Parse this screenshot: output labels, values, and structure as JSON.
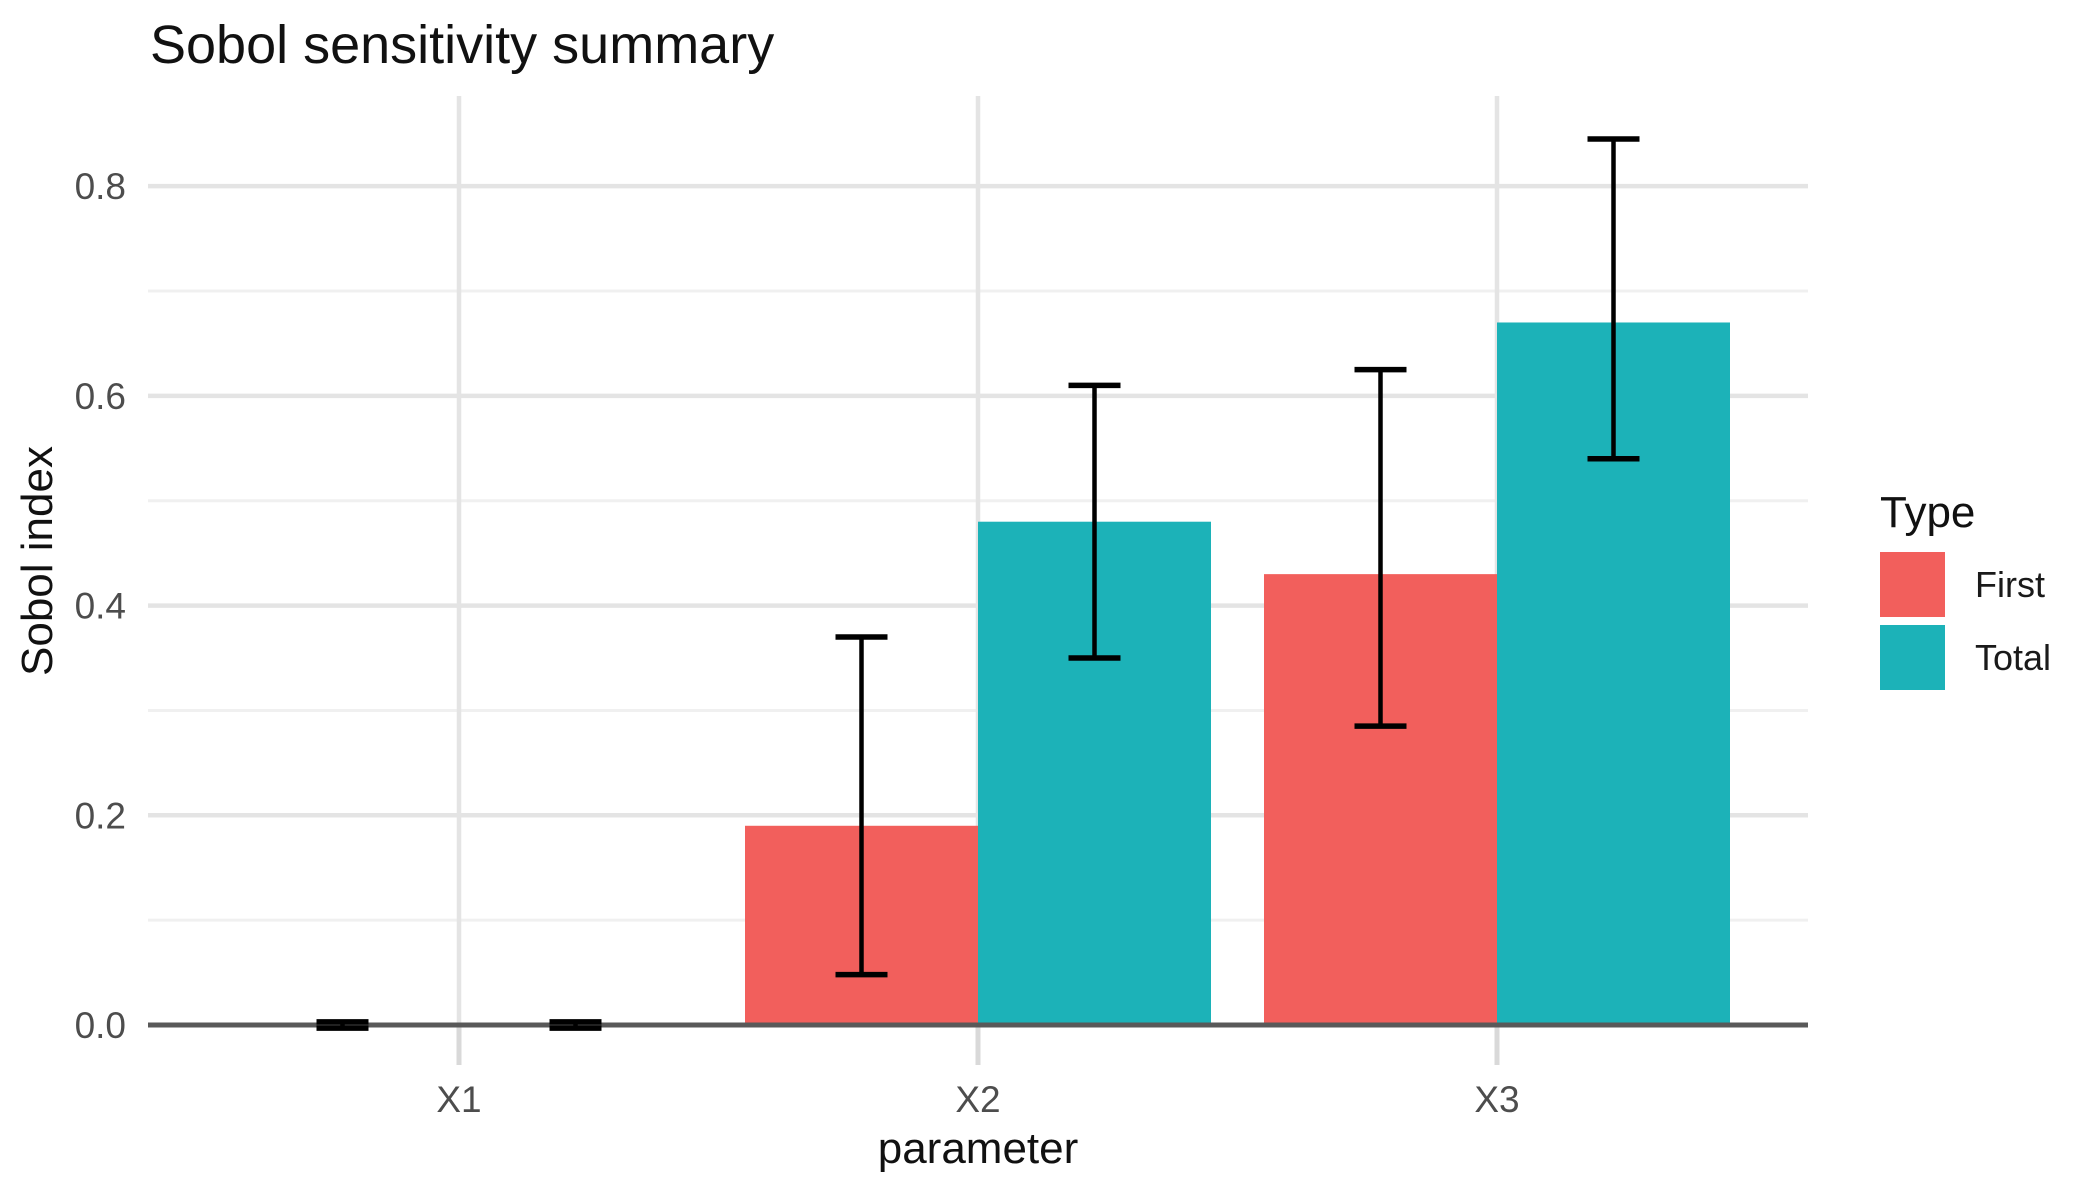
{
  "chart_data": {
    "type": "bar",
    "variant": "grouped-vertical-with-error-bars",
    "title": "Sobol sensitivity summary",
    "xlabel": "parameter",
    "ylabel": "Sobol index",
    "categories": [
      "X1",
      "X2",
      "X3"
    ],
    "series": [
      {
        "name": "First",
        "color": "#F25F5C",
        "values": [
          0.0,
          0.19,
          0.43
        ],
        "ci_low": [
          -0.003,
          0.048,
          0.285
        ],
        "ci_high": [
          0.003,
          0.37,
          0.625
        ]
      },
      {
        "name": "Total",
        "color": "#1CB2B8",
        "values": [
          0.0,
          0.48,
          0.67
        ],
        "ci_low": [
          -0.003,
          0.35,
          0.54
        ],
        "ci_high": [
          0.003,
          0.61,
          0.845
        ]
      }
    ],
    "ylim": [
      0,
      0.886
    ],
    "y_major_ticks": [
      0.0,
      0.2,
      0.4,
      0.6,
      0.8
    ],
    "y_tick_labels": [
      "0.0",
      "0.2",
      "0.4",
      "0.6",
      "0.8"
    ],
    "y_minor_ticks": [
      0.1,
      0.3,
      0.5,
      0.7
    ],
    "grid": true,
    "error_bars": true,
    "legend": {
      "title": "Type",
      "position": "right",
      "entries": [
        "First",
        "Total"
      ]
    },
    "colors": {
      "background": "#FFFFFF",
      "grid_major": "#E4E4E4",
      "grid_minor": "#F0F0F0",
      "axis_line": "#595959",
      "tick_mark": "#D9D9D9",
      "tick_text": "#4D4D4D",
      "error_bar": "#000000",
      "text": "#111111"
    }
  }
}
